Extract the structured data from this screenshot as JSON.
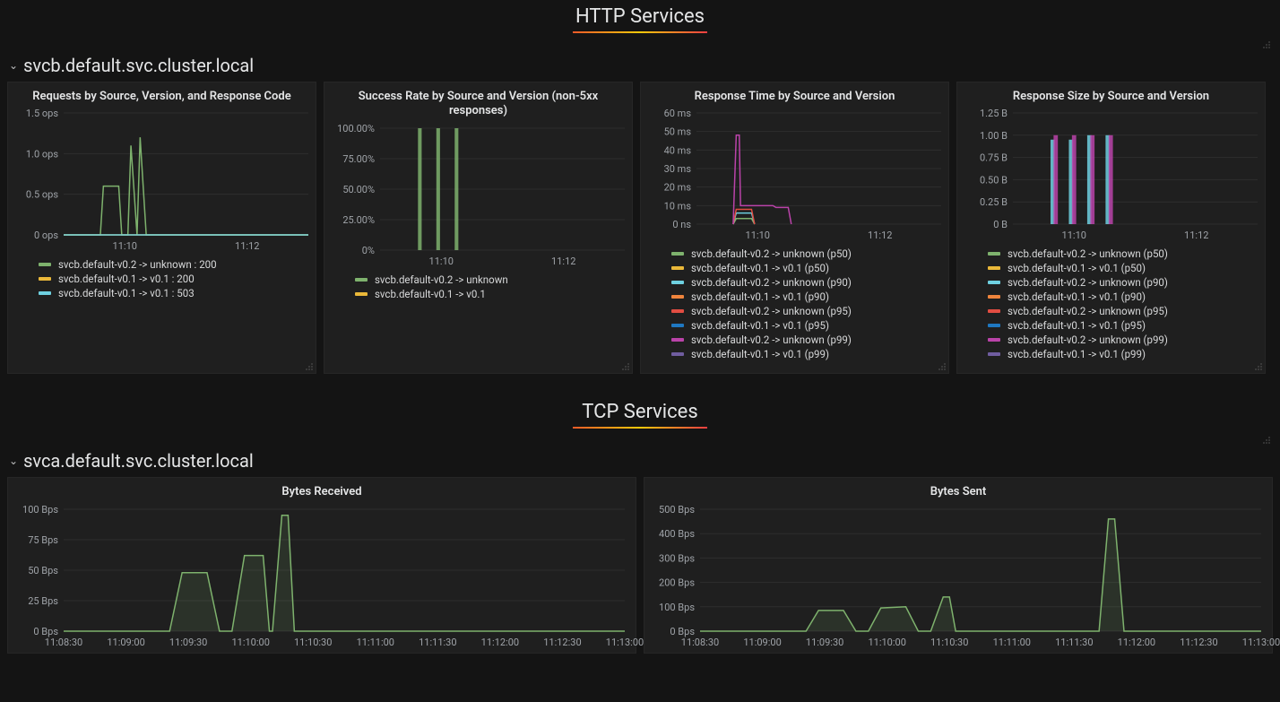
{
  "colors": {
    "bg": "#141414",
    "panel_bg": "#1f1f1f",
    "grid": "#2e2e2e",
    "axis_text": "#9fa3a8",
    "text": "#d8d9da",
    "green": "#7eb26d",
    "yellow": "#eab839",
    "cyan": "#6ed0e0",
    "orange": "#ef843c",
    "red": "#e24d42",
    "blue": "#1f78c1",
    "magenta": "#ba43a9",
    "purple": "#705da0"
  },
  "sections": {
    "http": {
      "title": "HTTP Services"
    },
    "tcp": {
      "title": "TCP Services"
    }
  },
  "rows": {
    "svcb": {
      "label": "svcb.default.svc.cluster.local"
    },
    "svca": {
      "label": "svca.default.svc.cluster.local"
    }
  },
  "panels": {
    "requests": {
      "title": "Requests by Source, Version, and Response Code",
      "type": "line",
      "ylabel_suffix": "ops",
      "ylim": [
        0,
        1.5
      ],
      "yticks": [
        0,
        0.5,
        1.0,
        1.5
      ],
      "ytick_labels": [
        "0 ops",
        "0.5 ops",
        "1.0 ops",
        "1.5 ops"
      ],
      "xticks": [
        1,
        3
      ],
      "xtick_labels": [
        "11:10",
        "11:12"
      ],
      "xlim": [
        0,
        4
      ],
      "series": [
        {
          "label": "svcb.default-v0.2 -> unknown : 200",
          "color": "#7eb26d",
          "points": [
            [
              0,
              0
            ],
            [
              0.6,
              0
            ],
            [
              0.65,
              0.6
            ],
            [
              0.9,
              0.6
            ],
            [
              0.95,
              0
            ],
            [
              1.05,
              0
            ],
            [
              1.1,
              1.1
            ],
            [
              1.2,
              0
            ],
            [
              1.25,
              1.2
            ],
            [
              1.35,
              0
            ],
            [
              4,
              0
            ]
          ]
        },
        {
          "label": "svcb.default-v0.1 -> v0.1 : 200",
          "color": "#eab839",
          "points": [
            [
              0,
              0
            ],
            [
              4,
              0
            ]
          ]
        },
        {
          "label": "svcb.default-v0.1 -> v0.1 : 503",
          "color": "#6ed0e0",
          "points": [
            [
              0,
              0
            ],
            [
              4,
              0
            ]
          ]
        }
      ]
    },
    "success": {
      "title": "Success Rate by Source and Version (non-5xx responses)",
      "type": "bar-like",
      "ylim": [
        0,
        100
      ],
      "yticks": [
        0,
        25,
        50,
        75,
        100
      ],
      "ytick_labels": [
        "0%",
        "25.00%",
        "50.00%",
        "75.00%",
        "100.00%"
      ],
      "xticks": [
        1,
        3
      ],
      "xtick_labels": [
        "11:10",
        "11:12"
      ],
      "xlim": [
        0,
        4
      ],
      "series": [
        {
          "label": "svcb.default-v0.2 -> unknown",
          "color": "#7eb26d",
          "bars": [
            [
              0.65,
              100
            ],
            [
              0.95,
              100
            ],
            [
              1.25,
              100
            ]
          ]
        },
        {
          "label": "svcb.default-v0.1 -> v0.1",
          "color": "#eab839",
          "bars": []
        }
      ],
      "bar_width": 0.06
    },
    "rtime": {
      "title": "Response Time by Source and Version",
      "type": "line",
      "ylim": [
        0,
        60
      ],
      "yticks": [
        0,
        10,
        20,
        30,
        40,
        50,
        60
      ],
      "ytick_labels": [
        "0 ns",
        "10 ms",
        "20 ms",
        "30 ms",
        "40 ms",
        "50 ms",
        "60 ms"
      ],
      "xticks": [
        1,
        3
      ],
      "xtick_labels": [
        "11:10",
        "11:12"
      ],
      "xlim": [
        0,
        4
      ],
      "series": [
        {
          "label": "svcb.default-v0.2 -> unknown (p50)",
          "color": "#7eb26d",
          "points": [
            [
              0.6,
              0
            ],
            [
              0.65,
              3
            ],
            [
              0.9,
              3
            ],
            [
              0.95,
              0
            ]
          ]
        },
        {
          "label": "svcb.default-v0.1 -> v0.1 (p50)",
          "color": "#eab839",
          "points": []
        },
        {
          "label": "svcb.default-v0.2 -> unknown (p90)",
          "color": "#6ed0e0",
          "points": [
            [
              0.6,
              0
            ],
            [
              0.65,
              6
            ],
            [
              0.9,
              6
            ],
            [
              0.95,
              0
            ]
          ]
        },
        {
          "label": "svcb.default-v0.1 -> v0.1 (p90)",
          "color": "#ef843c",
          "points": []
        },
        {
          "label": "svcb.default-v0.2 -> unknown (p95)",
          "color": "#e24d42",
          "points": [
            [
              0.6,
              0
            ],
            [
              0.65,
              8
            ],
            [
              0.9,
              8
            ],
            [
              0.95,
              0
            ]
          ]
        },
        {
          "label": "svcb.default-v0.1 -> v0.1 (p95)",
          "color": "#1f78c1",
          "points": []
        },
        {
          "label": "svcb.default-v0.2 -> unknown (p99)",
          "color": "#ba43a9",
          "points": [
            [
              0.6,
              0
            ],
            [
              0.65,
              48
            ],
            [
              0.7,
              48
            ],
            [
              0.72,
              10
            ],
            [
              1.25,
              10
            ],
            [
              1.3,
              9
            ],
            [
              1.5,
              9
            ],
            [
              1.55,
              0
            ]
          ]
        },
        {
          "label": "svcb.default-v0.1 -> v0.1 (p99)",
          "color": "#705da0",
          "points": []
        }
      ]
    },
    "rsize": {
      "title": "Response Size by Source and Version",
      "type": "bar-like",
      "ylim": [
        0,
        1.25
      ],
      "yticks": [
        0,
        0.25,
        0.5,
        0.75,
        1.0,
        1.25
      ],
      "ytick_labels": [
        "0 B",
        "0.25 B",
        "0.50 B",
        "0.75 B",
        "1.00 B",
        "1.25 B"
      ],
      "xticks": [
        1,
        3
      ],
      "xtick_labels": [
        "11:10",
        "11:12"
      ],
      "xlim": [
        0,
        4
      ],
      "bar_width": 0.07,
      "series": [
        {
          "label": "svcb.default-v0.2 -> unknown (p50)",
          "color": "#7eb26d",
          "bars": []
        },
        {
          "label": "svcb.default-v0.1 -> v0.1 (p50)",
          "color": "#eab839",
          "bars": []
        },
        {
          "label": "svcb.default-v0.2 -> unknown (p90)",
          "color": "#6ed0e0",
          "bars": [
            [
              0.65,
              0.95
            ],
            [
              0.95,
              0.95
            ],
            [
              1.25,
              1.0
            ],
            [
              1.55,
              1.0
            ]
          ]
        },
        {
          "label": "svcb.default-v0.1 -> v0.1 (p90)",
          "color": "#ef843c",
          "bars": []
        },
        {
          "label": "svcb.default-v0.2 -> unknown (p95)",
          "color": "#e24d42",
          "bars": []
        },
        {
          "label": "svcb.default-v0.1 -> v0.1 (p95)",
          "color": "#1f78c1",
          "bars": []
        },
        {
          "label": "svcb.default-v0.2 -> unknown (p99)",
          "color": "#ba43a9",
          "bars": [
            [
              0.7,
              1.0
            ],
            [
              1.0,
              1.0
            ],
            [
              1.3,
              1.0
            ],
            [
              1.6,
              1.0
            ]
          ]
        },
        {
          "label": "svcb.default-v0.1 -> v0.1 (p99)",
          "color": "#705da0",
          "bars": []
        }
      ]
    },
    "bytes_rx": {
      "title": "Bytes Received",
      "type": "area",
      "ylim": [
        0,
        100
      ],
      "yticks": [
        0,
        25,
        50,
        75,
        100
      ],
      "ytick_labels": [
        "0 Bps",
        "25 Bps",
        "50 Bps",
        "75 Bps",
        "100 Bps"
      ],
      "xlim": [
        0,
        9
      ],
      "xticks": [
        0,
        1,
        2,
        3,
        4,
        5,
        6,
        7,
        8,
        9
      ],
      "xtick_labels": [
        "11:08:30",
        "11:09:00",
        "11:09:30",
        "11:10:00",
        "11:10:30",
        "11:11:00",
        "11:11:30",
        "11:12:00",
        "11:12:30",
        "11:13:00"
      ],
      "series": [
        {
          "color": "#7eb26d",
          "fill": "#7eb26d22",
          "points": [
            [
              0,
              0
            ],
            [
              1.7,
              0
            ],
            [
              1.9,
              48
            ],
            [
              2.3,
              48
            ],
            [
              2.5,
              0
            ],
            [
              2.7,
              0
            ],
            [
              2.9,
              62
            ],
            [
              3.2,
              62
            ],
            [
              3.3,
              0
            ],
            [
              3.35,
              0
            ],
            [
              3.5,
              95
            ],
            [
              3.6,
              95
            ],
            [
              3.7,
              0
            ],
            [
              9,
              0
            ]
          ]
        }
      ]
    },
    "bytes_tx": {
      "title": "Bytes Sent",
      "type": "area",
      "ylim": [
        0,
        500
      ],
      "yticks": [
        0,
        100,
        200,
        300,
        400,
        500
      ],
      "ytick_labels": [
        "0 Bps",
        "100 Bps",
        "200 Bps",
        "300 Bps",
        "400 Bps",
        "500 Bps"
      ],
      "xlim": [
        0,
        9
      ],
      "xticks": [
        0,
        1,
        2,
        3,
        4,
        5,
        6,
        7,
        8,
        9
      ],
      "xtick_labels": [
        "11:08:30",
        "11:09:00",
        "11:09:30",
        "11:10:00",
        "11:10:30",
        "11:11:00",
        "11:11:30",
        "11:12:00",
        "11:12:30",
        "11:13:00"
      ],
      "series": [
        {
          "color": "#7eb26d",
          "fill": "#7eb26d22",
          "points": [
            [
              0,
              0
            ],
            [
              1.7,
              0
            ],
            [
              1.9,
              85
            ],
            [
              2.3,
              85
            ],
            [
              2.5,
              0
            ],
            [
              2.7,
              0
            ],
            [
              2.9,
              95
            ],
            [
              3.3,
              100
            ],
            [
              3.5,
              0
            ],
            [
              3.7,
              0
            ],
            [
              3.9,
              140
            ],
            [
              4.0,
              140
            ],
            [
              4.1,
              0
            ],
            [
              6.4,
              0
            ],
            [
              6.55,
              460
            ],
            [
              6.65,
              460
            ],
            [
              6.8,
              0
            ],
            [
              9,
              0
            ]
          ]
        }
      ]
    }
  }
}
